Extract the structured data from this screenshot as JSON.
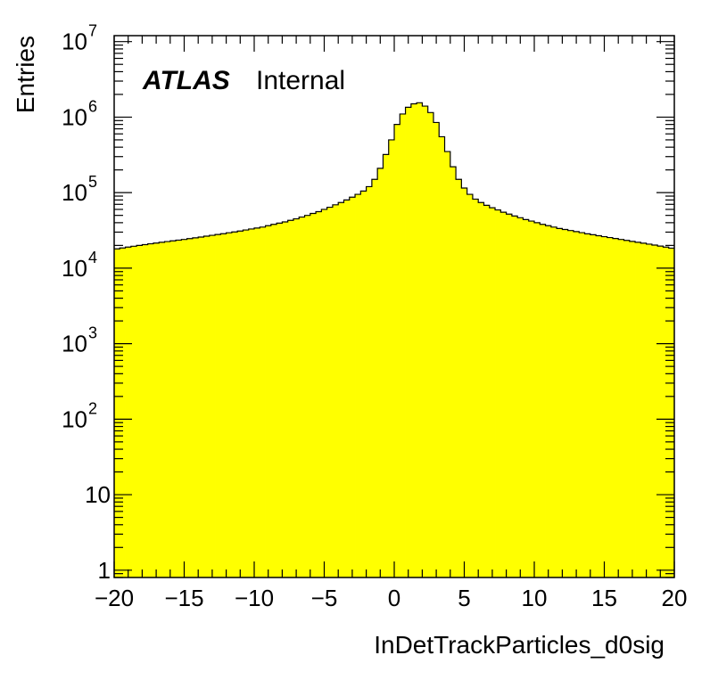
{
  "chart_data": {
    "type": "bar",
    "xlabel": "InDetTrackParticles_d0sig",
    "ylabel": "Entries",
    "annotation": {
      "label_bold": "ATLAS",
      "label": "Internal"
    },
    "xlim": [
      -20,
      20
    ],
    "ylim": [
      0.8,
      12000000
    ],
    "log_y": true,
    "grid": false,
    "fill_color": "#ffff00",
    "line_color": "#000000",
    "x_ticks": [
      {
        "value": -20,
        "label": "−20"
      },
      {
        "value": -15,
        "label": "−15"
      },
      {
        "value": -10,
        "label": "−10"
      },
      {
        "value": -5,
        "label": "−5"
      },
      {
        "value": 0,
        "label": "0"
      },
      {
        "value": 5,
        "label": "5"
      },
      {
        "value": 10,
        "label": "10"
      },
      {
        "value": 15,
        "label": "15"
      },
      {
        "value": 20,
        "label": "20"
      }
    ],
    "y_ticks": [
      {
        "value": 1,
        "base": "1",
        "exp": ""
      },
      {
        "value": 10,
        "base": "10",
        "exp": ""
      },
      {
        "value": 100,
        "base": "10",
        "exp": "2"
      },
      {
        "value": 1000,
        "base": "10",
        "exp": "3"
      },
      {
        "value": 10000,
        "base": "10",
        "exp": "4"
      },
      {
        "value": 100000,
        "base": "10",
        "exp": "5"
      },
      {
        "value": 1000000,
        "base": "10",
        "exp": "6"
      },
      {
        "value": 10000000,
        "base": "10",
        "exp": "7"
      }
    ],
    "bins": {
      "edges_start": -20,
      "bin_width": 0.4,
      "values": [
        18000,
        18500,
        19000,
        19500,
        20000,
        20500,
        21000,
        21500,
        22000,
        22500,
        23000,
        23500,
        24000,
        24600,
        25200,
        25800,
        26500,
        27200,
        27900,
        28600,
        29400,
        30200,
        31000,
        32000,
        33000,
        34000,
        35000,
        36500,
        38000,
        39500,
        41000,
        43000,
        45000,
        47500,
        50000,
        53000,
        56000,
        60000,
        64000,
        69000,
        74000,
        80000,
        87000,
        95000,
        105000,
        120000,
        150000,
        210000,
        320000,
        500000,
        800000,
        1100000,
        1350000,
        1500000,
        1550000,
        1400000,
        1150000,
        850000,
        550000,
        350000,
        220000,
        150000,
        115000,
        95000,
        82000,
        74000,
        68000,
        63000,
        59000,
        55000,
        52000,
        49000,
        46500,
        44000,
        42000,
        40000,
        38000,
        36500,
        35000,
        33500,
        32500,
        31500,
        30500,
        29500,
        28500,
        27700,
        26900,
        26100,
        25400,
        24700,
        24000,
        23300,
        22600,
        22000,
        21400,
        20800,
        20200,
        19600,
        19000,
        18400
      ]
    }
  }
}
